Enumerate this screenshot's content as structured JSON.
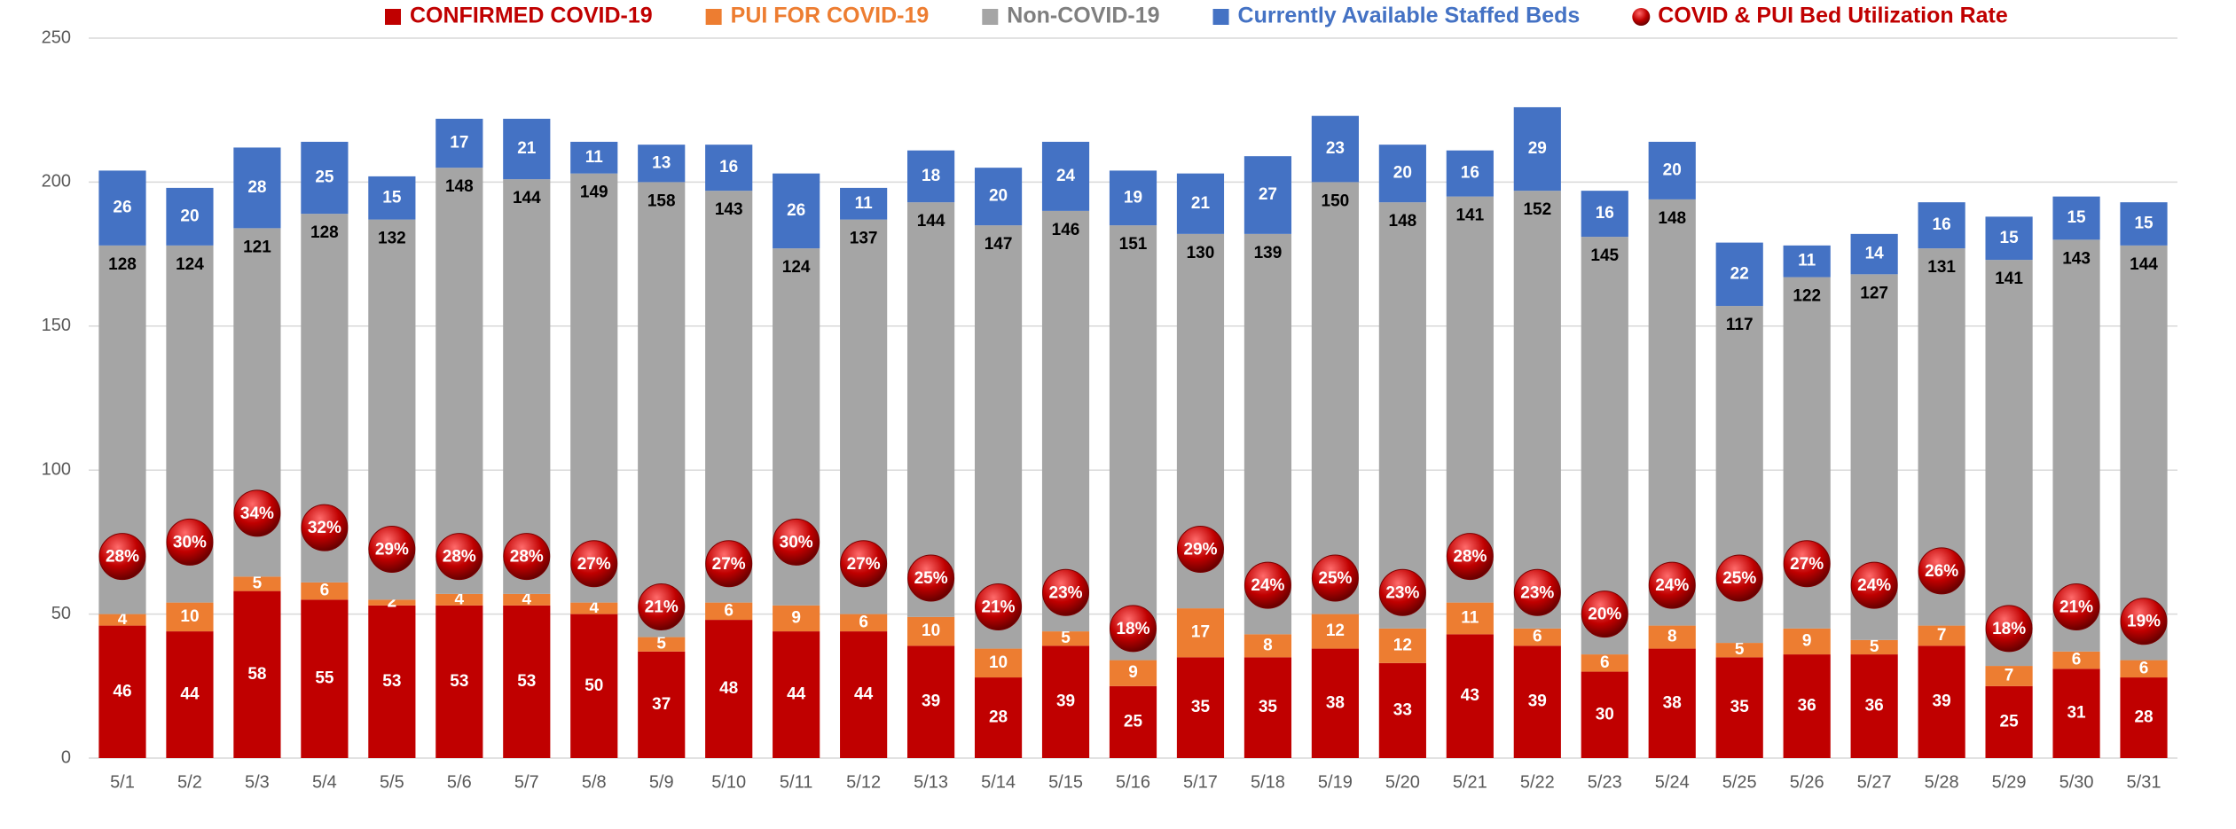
{
  "chart_data": {
    "type": "bar",
    "stacked": true,
    "categories": [
      "5/1",
      "5/2",
      "5/3",
      "5/4",
      "5/5",
      "5/6",
      "5/7",
      "5/8",
      "5/9",
      "5/10",
      "5/11",
      "5/12",
      "5/13",
      "5/14",
      "5/15",
      "5/16",
      "5/17",
      "5/18",
      "5/19",
      "5/20",
      "5/21",
      "5/22",
      "5/23",
      "5/24",
      "5/25",
      "5/26",
      "5/27",
      "5/28",
      "5/29",
      "5/30",
      "5/31"
    ],
    "series": [
      {
        "name": "CONFIRMED COVID-19",
        "color": "#c00000",
        "label_color": "#ffffff",
        "values": [
          46,
          44,
          58,
          55,
          53,
          53,
          53,
          50,
          37,
          48,
          44,
          44,
          39,
          28,
          39,
          25,
          35,
          35,
          38,
          33,
          43,
          39,
          30,
          38,
          35,
          36,
          36,
          39,
          25,
          31,
          28
        ]
      },
      {
        "name": "PUI FOR COVID-19",
        "color": "#ed7d31",
        "label_color": "#ffffff",
        "values": [
          4,
          10,
          5,
          6,
          2,
          4,
          4,
          4,
          5,
          6,
          9,
          6,
          10,
          10,
          5,
          9,
          17,
          8,
          12,
          12,
          11,
          6,
          6,
          8,
          5,
          9,
          5,
          7,
          7,
          6,
          6
        ]
      },
      {
        "name": "Non-COVID-19",
        "color": "#a5a5a5",
        "label_color": "#000000",
        "values": [
          128,
          124,
          121,
          128,
          132,
          148,
          144,
          149,
          158,
          143,
          124,
          137,
          144,
          147,
          146,
          151,
          130,
          139,
          150,
          148,
          141,
          152,
          145,
          148,
          117,
          122,
          127,
          131,
          141,
          143,
          144
        ]
      },
      {
        "name": "Currently Available Staffed Beds",
        "color": "#4472c4",
        "label_color": "#ffffff",
        "values": [
          26,
          20,
          28,
          25,
          15,
          17,
          21,
          11,
          13,
          16,
          26,
          11,
          18,
          20,
          24,
          19,
          21,
          27,
          23,
          20,
          16,
          29,
          16,
          20,
          22,
          11,
          14,
          16,
          15,
          15,
          15
        ]
      }
    ],
    "rate": {
      "name": "COVID & PUI Bed Utilization Rate",
      "color": "#c00000",
      "axis": "y2",
      "values": [
        28,
        30,
        34,
        32,
        29,
        28,
        28,
        27,
        21,
        27,
        30,
        27,
        25,
        21,
        23,
        18,
        29,
        24,
        25,
        23,
        28,
        23,
        20,
        24,
        25,
        27,
        24,
        26,
        18,
        21,
        19
      ],
      "value_labels": [
        "28%",
        "30%",
        "34%",
        "32%",
        "29%",
        "28%",
        "28%",
        "27%",
        "21%",
        "27%",
        "30%",
        "27%",
        "25%",
        "21%",
        "23%",
        "18%",
        "29%",
        "24%",
        "25%",
        "23%",
        "28%",
        "23%",
        "20%",
        "24%",
        "25%",
        "27%",
        "24%",
        "26%",
        "18%",
        "21%",
        "19%"
      ]
    },
    "ylim": [
      0,
      250
    ],
    "yticks": [
      0,
      50,
      100,
      150,
      200,
      250
    ],
    "y2lim": [
      0,
      100
    ],
    "grid": true
  }
}
